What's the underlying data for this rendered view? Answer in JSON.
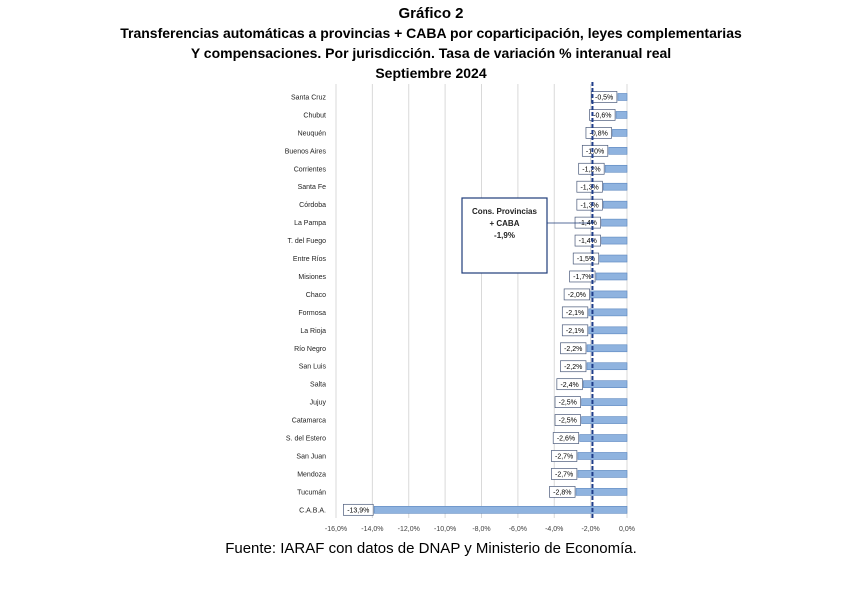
{
  "header": {
    "title": "Gráfico 2",
    "subtitle1": "Transferencias automáticas a provincias + CABA por coparticipación, leyes complementarias",
    "subtitle2": "Y compensaciones. Por jurisdicción. Tasa de variación % interanual real",
    "subtitle3": "Septiembre 2024"
  },
  "source": "Fuente: IARAF con datos de DNAP y Ministerio de Economía.",
  "chart_data": {
    "type": "bar",
    "orientation": "horizontal",
    "categories": [
      "Santa Cruz",
      "Chubut",
      "Neuquén",
      "Buenos Aires",
      "Corrientes",
      "Santa Fe",
      "Córdoba",
      "La Pampa",
      "T. del Fuego",
      "Entre Ríos",
      "Misiones",
      "Chaco",
      "Formosa",
      "La Rioja",
      "Río Negro",
      "San Luis",
      "Salta",
      "Jujuy",
      "Catamarca",
      "S. del Estero",
      "San Juan",
      "Mendoza",
      "Tucumán",
      "C.A.B.A."
    ],
    "values": [
      -0.5,
      -0.6,
      -0.8,
      -1.0,
      -1.2,
      -1.3,
      -1.3,
      -1.4,
      -1.4,
      -1.5,
      -1.7,
      -2.0,
      -2.1,
      -2.1,
      -2.2,
      -2.2,
      -2.4,
      -2.5,
      -2.5,
      -2.6,
      -2.7,
      -2.7,
      -2.8,
      -13.9
    ],
    "data_labels": [
      "-0,5%",
      "-0,6%",
      "-0,8%",
      "-1,0%",
      "-1,2%",
      "-1,3%",
      "-1,3%",
      "-1,4%",
      "-1,4%",
      "-1,5%",
      "-1,7%",
      "-2,0%",
      "-2,1%",
      "-2,1%",
      "-2,2%",
      "-2,2%",
      "-2,4%",
      "-2,5%",
      "-2,5%",
      "-2,6%",
      "-2,7%",
      "-2,7%",
      "-2,8%",
      "-13,9%"
    ],
    "xlim": [
      -16,
      0
    ],
    "xticks": [
      -16,
      -14,
      -12,
      -10,
      -8,
      -6,
      -4,
      -2,
      0
    ],
    "xtick_labels": [
      "-16,0%",
      "-14,0%",
      "-12,0%",
      "-10,0%",
      "-8,0%",
      "-6,0%",
      "-4,0%",
      "-2,0%",
      "0,0%"
    ],
    "reference": {
      "value": -1.9,
      "label_lines": [
        "Cons. Provincias",
        "+ CABA",
        "-1,9%"
      ]
    },
    "grid": "vertical",
    "colors": {
      "bar": "#8fb3df",
      "bar_edge": "#5b86bf",
      "reference": "#1f3d8a",
      "grid": "#d9d9d9",
      "label_box_edge": "#4a5a7a",
      "callout_edge": "#1f3d7a"
    }
  }
}
